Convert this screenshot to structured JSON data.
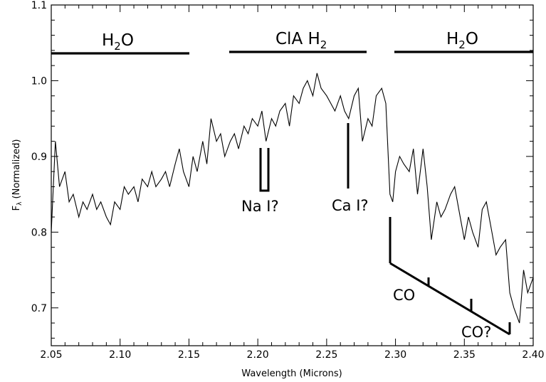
{
  "chart_data": {
    "type": "line",
    "title": "",
    "xlabel": "Wavelength (Microns)",
    "ylabel": "Fλ (Normalized)",
    "xlim": [
      2.05,
      2.4
    ],
    "ylim": [
      0.65,
      1.1
    ],
    "xticks": [
      2.05,
      2.1,
      2.15,
      2.2,
      2.25,
      2.3,
      2.35,
      2.4
    ],
    "xtick_labels": [
      "2.05",
      "2.10",
      "2.15",
      "2.20",
      "2.25",
      "2.30",
      "2.35",
      "2.40"
    ],
    "yticks": [
      0.7,
      0.8,
      0.9,
      1.0,
      1.1
    ],
    "ytick_labels": [
      "0.7",
      "0.8",
      "0.9",
      "1.0",
      "1.1"
    ],
    "grid": false,
    "legend": "none",
    "series": [
      {
        "x": [
          2.05,
          2.053,
          2.056,
          2.06,
          2.063,
          2.066,
          2.07,
          2.073,
          2.076,
          2.08,
          2.083,
          2.086,
          2.09,
          2.093,
          2.096,
          2.1,
          2.103,
          2.106,
          2.11,
          2.113,
          2.116,
          2.12,
          2.123,
          2.126,
          2.13,
          2.133,
          2.136,
          2.14,
          2.143,
          2.146,
          2.15,
          2.153,
          2.156,
          2.16,
          2.163,
          2.166,
          2.17,
          2.173,
          2.176,
          2.18,
          2.183,
          2.186,
          2.19,
          2.193,
          2.196,
          2.2,
          2.203,
          2.206,
          2.21,
          2.213,
          2.216,
          2.22,
          2.223,
          2.226,
          2.23,
          2.233,
          2.236,
          2.24,
          2.243,
          2.246,
          2.25,
          2.253,
          2.256,
          2.26,
          2.263,
          2.266,
          2.27,
          2.273,
          2.276,
          2.28,
          2.283,
          2.286,
          2.29,
          2.293,
          2.296,
          2.298,
          2.3,
          2.303,
          2.306,
          2.31,
          2.313,
          2.316,
          2.32,
          2.323,
          2.326,
          2.33,
          2.333,
          2.336,
          2.34,
          2.343,
          2.346,
          2.35,
          2.353,
          2.356,
          2.36,
          2.363,
          2.366,
          2.37,
          2.373,
          2.376,
          2.38,
          2.383,
          2.386,
          2.39,
          2.393,
          2.396,
          2.4
        ],
        "y": [
          0.8,
          0.92,
          0.86,
          0.88,
          0.84,
          0.85,
          0.82,
          0.84,
          0.83,
          0.85,
          0.83,
          0.84,
          0.82,
          0.81,
          0.84,
          0.83,
          0.86,
          0.85,
          0.86,
          0.84,
          0.87,
          0.86,
          0.88,
          0.86,
          0.87,
          0.88,
          0.86,
          0.89,
          0.91,
          0.88,
          0.86,
          0.9,
          0.88,
          0.92,
          0.89,
          0.95,
          0.92,
          0.93,
          0.9,
          0.92,
          0.93,
          0.91,
          0.94,
          0.93,
          0.95,
          0.94,
          0.96,
          0.92,
          0.95,
          0.94,
          0.96,
          0.97,
          0.94,
          0.98,
          0.97,
          0.99,
          1.0,
          0.98,
          1.01,
          0.99,
          0.98,
          0.97,
          0.96,
          0.98,
          0.96,
          0.95,
          0.98,
          0.99,
          0.92,
          0.95,
          0.94,
          0.98,
          0.99,
          0.97,
          0.85,
          0.84,
          0.88,
          0.9,
          0.89,
          0.88,
          0.91,
          0.85,
          0.91,
          0.86,
          0.79,
          0.84,
          0.82,
          0.83,
          0.85,
          0.86,
          0.83,
          0.79,
          0.82,
          0.8,
          0.78,
          0.83,
          0.84,
          0.8,
          0.77,
          0.78,
          0.79,
          0.72,
          0.7,
          0.68,
          0.75,
          0.72,
          0.74
        ]
      }
    ],
    "annotations": {
      "bands": [
        {
          "label": "H2O",
          "x": [
            2.05,
            2.153
          ]
        },
        {
          "label": "CIA H2",
          "x": [
            2.181,
            2.282
          ]
        },
        {
          "label": "H2O",
          "x": [
            2.297,
            2.4
          ]
        }
      ],
      "lines": [
        {
          "label": "Na I?"
        },
        {
          "label": "Ca I?"
        },
        {
          "label": "CO"
        },
        {
          "label": "CO?"
        }
      ]
    }
  }
}
